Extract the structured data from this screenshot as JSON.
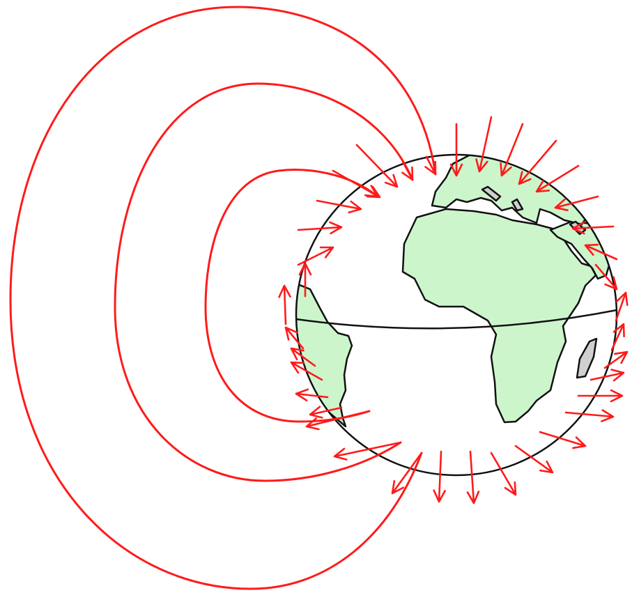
{
  "diagram": {
    "colors": {
      "field_line": "#ff1a1a",
      "land": "#ccf5cc",
      "island": "#d0d0d0",
      "outline": "#111111",
      "background": "#ffffff"
    },
    "globe": {
      "equator": true,
      "continents": [
        "africa",
        "south-america",
        "europe",
        "madagascar",
        "arabia"
      ]
    },
    "field": {
      "loops": 3,
      "inward_arrows_upper_hemisphere": true,
      "outward_arrows_lower_hemisphere": true
    }
  }
}
